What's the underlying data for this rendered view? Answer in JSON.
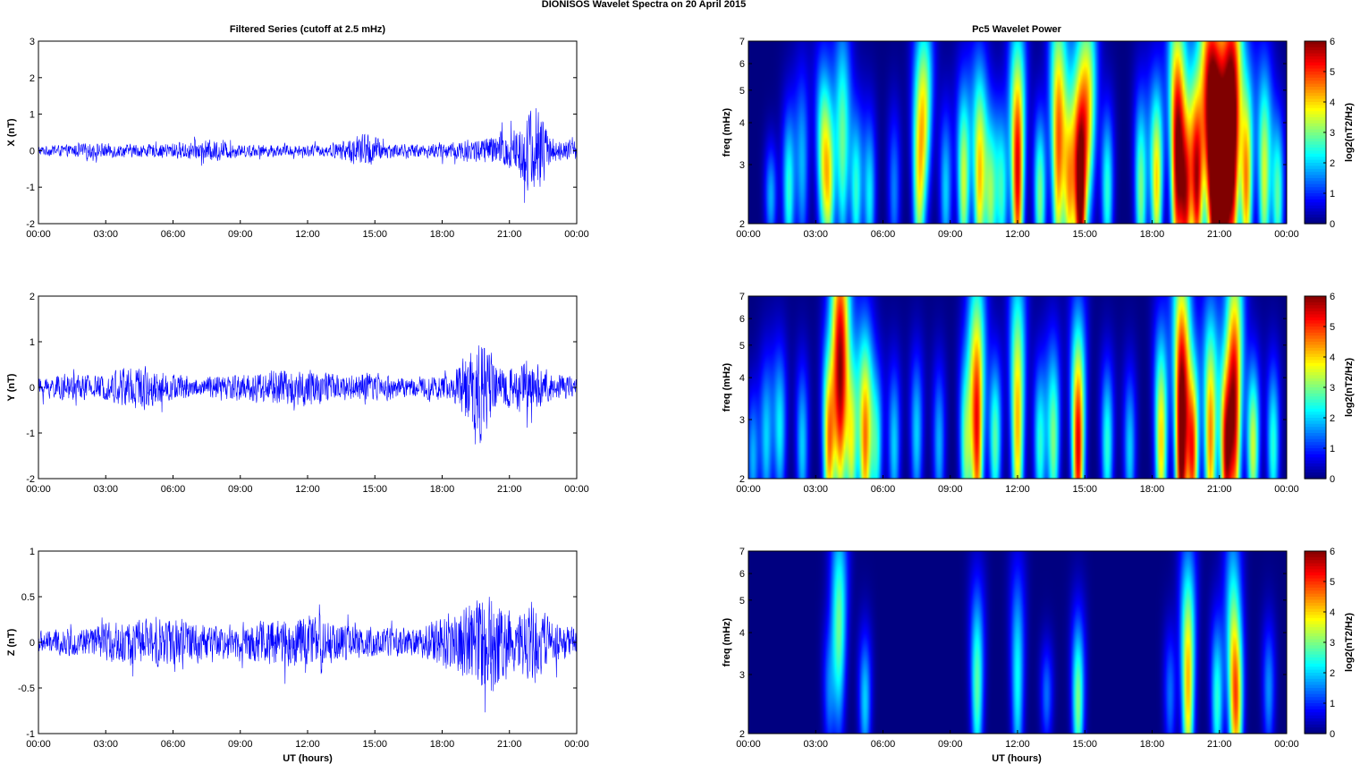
{
  "figure": {
    "title": "DIONISOS Wavelet Spectra on 20 April     2015",
    "left_title": "Filtered Series (cutoff at 2.5 mHz)",
    "right_title": "Pc5 Wavelet Power",
    "xlabel": "UT (hours)",
    "colormap": "jet"
  },
  "chart_data": [
    {
      "type": "line",
      "component": "X",
      "ylabel": "X (nT)",
      "xlim": [
        0,
        24
      ],
      "ylim": [
        -2,
        3
      ],
      "yticks": [
        "3",
        "2",
        "1",
        "0",
        "-1",
        "-2"
      ],
      "ytick_values": [
        3,
        2,
        1,
        0,
        -1,
        -2
      ],
      "xticks": [
        "00:00",
        "03:00",
        "06:00",
        "09:00",
        "12:00",
        "15:00",
        "18:00",
        "21:00",
        "00:00"
      ],
      "line_color": "#0000ff",
      "envelope": [
        {
          "t": 0,
          "amp": 0.15
        },
        {
          "t": 1.5,
          "amp": 0.2
        },
        {
          "t": 2.5,
          "amp": 0.25
        },
        {
          "t": 3.5,
          "amp": 0.22
        },
        {
          "t": 5,
          "amp": 0.2
        },
        {
          "t": 7.8,
          "amp": 0.35
        },
        {
          "t": 9,
          "amp": 0.2
        },
        {
          "t": 12,
          "amp": 0.18
        },
        {
          "t": 13,
          "amp": 0.2
        },
        {
          "t": 14.7,
          "amp": 0.6
        },
        {
          "t": 15.5,
          "amp": 0.25
        },
        {
          "t": 17,
          "amp": 0.2
        },
        {
          "t": 18.5,
          "amp": 0.3
        },
        {
          "t": 20,
          "amp": 0.45
        },
        {
          "t": 21.3,
          "amp": 0.8
        },
        {
          "t": 22.2,
          "amp": 1.6
        },
        {
          "t": 23,
          "amp": 0.35
        },
        {
          "t": 24,
          "amp": 0.3
        }
      ]
    },
    {
      "type": "line",
      "component": "Y",
      "ylabel": "Y (nT)",
      "xlim": [
        0,
        24
      ],
      "ylim": [
        -2,
        2
      ],
      "yticks": [
        "2",
        "1",
        "0",
        "-1",
        "-2"
      ],
      "ytick_values": [
        2,
        1,
        0,
        -1,
        -2
      ],
      "xticks": [
        "00:00",
        "03:00",
        "06:00",
        "09:00",
        "12:00",
        "15:00",
        "18:00",
        "21:00",
        "00:00"
      ],
      "line_color": "#0000ff",
      "envelope": [
        {
          "t": 0,
          "amp": 0.25
        },
        {
          "t": 1.5,
          "amp": 0.35
        },
        {
          "t": 3,
          "amp": 0.3
        },
        {
          "t": 4.1,
          "amp": 0.7
        },
        {
          "t": 5.2,
          "amp": 0.45
        },
        {
          "t": 7,
          "amp": 0.25
        },
        {
          "t": 10.3,
          "amp": 0.45
        },
        {
          "t": 12,
          "amp": 0.5
        },
        {
          "t": 13.5,
          "amp": 0.3
        },
        {
          "t": 14.7,
          "amp": 0.4
        },
        {
          "t": 16.5,
          "amp": 0.25
        },
        {
          "t": 18.5,
          "amp": 0.35
        },
        {
          "t": 19.7,
          "amp": 1.5
        },
        {
          "t": 20.5,
          "amp": 0.45
        },
        {
          "t": 21.8,
          "amp": 0.7
        },
        {
          "t": 23,
          "amp": 0.35
        },
        {
          "t": 24,
          "amp": 0.3
        }
      ]
    },
    {
      "type": "line",
      "component": "Z",
      "ylabel": "Z (nT)",
      "xlim": [
        0,
        24
      ],
      "ylim": [
        -1,
        1
      ],
      "yticks": [
        "1",
        "0.5",
        "0",
        "-0.5",
        "-1"
      ],
      "ytick_values": [
        1,
        0.5,
        0,
        -0.5,
        -1
      ],
      "xticks": [
        "00:00",
        "03:00",
        "06:00",
        "09:00",
        "12:00",
        "15:00",
        "18:00",
        "21:00",
        "00:00"
      ],
      "line_color": "#0000ff",
      "envelope": [
        {
          "t": 0,
          "amp": 0.15
        },
        {
          "t": 2,
          "amp": 0.18
        },
        {
          "t": 4,
          "amp": 0.3
        },
        {
          "t": 6.5,
          "amp": 0.3
        },
        {
          "t": 8,
          "amp": 0.2
        },
        {
          "t": 10.3,
          "amp": 0.3
        },
        {
          "t": 12.3,
          "amp": 0.35
        },
        {
          "t": 14,
          "amp": 0.2
        },
        {
          "t": 17,
          "amp": 0.18
        },
        {
          "t": 19.5,
          "amp": 0.55
        },
        {
          "t": 20,
          "amp": 0.8
        },
        {
          "t": 21.2,
          "amp": 0.35
        },
        {
          "t": 22,
          "amp": 0.55
        },
        {
          "t": 23,
          "amp": 0.25
        },
        {
          "t": 24,
          "amp": 0.2
        }
      ]
    },
    {
      "type": "heatmap",
      "component": "X",
      "ylabel": "freq (mHz)",
      "xlim": [
        0,
        24
      ],
      "ylim": [
        2,
        7
      ],
      "yscale": "log",
      "yticks": [
        "7",
        "6",
        "5",
        "4",
        "3",
        "2"
      ],
      "ytick_values": [
        7,
        6,
        5,
        4,
        3,
        2
      ],
      "xticks": [
        "00:00",
        "03:00",
        "06:00",
        "09:00",
        "12:00",
        "15:00",
        "18:00",
        "21:00",
        "00:00"
      ],
      "clim": [
        0,
        6
      ],
      "colorbar_label": "log2(nT2/Hz)",
      "colorbar_ticks": [
        "6",
        "5",
        "4",
        "3",
        "2",
        "1",
        "0"
      ],
      "blobs": [
        {
          "t": 1.0,
          "f": 2.4,
          "p": 1.8,
          "ft": 0.3
        },
        {
          "t": 1.8,
          "f": 2.5,
          "p": 2.5,
          "ft": 0.5
        },
        {
          "t": 2.4,
          "f": 3.0,
          "p": 1.8,
          "ft": 0.6
        },
        {
          "t": 3.3,
          "f": 3.3,
          "p": 2.5,
          "ft": 0.6
        },
        {
          "t": 3.6,
          "f": 2.6,
          "p": 3.2,
          "ft": 0.5
        },
        {
          "t": 4.2,
          "f": 3.5,
          "p": 2.8,
          "ft": 0.8
        },
        {
          "t": 4.8,
          "f": 2.5,
          "p": 2.5,
          "ft": 0.5
        },
        {
          "t": 5.4,
          "f": 2.4,
          "p": 2.2,
          "ft": 0.5
        },
        {
          "t": 6.5,
          "f": 2.5,
          "p": 1.5,
          "ft": 0.5
        },
        {
          "t": 7.6,
          "f": 2.8,
          "p": 3.5,
          "ft": 0.7
        },
        {
          "t": 7.9,
          "f": 4.6,
          "p": 2.5,
          "ft": 0.6
        },
        {
          "t": 8.8,
          "f": 2.5,
          "p": 2.0,
          "ft": 0.5
        },
        {
          "t": 9.6,
          "f": 2.7,
          "p": 3.5,
          "ft": 0.6
        },
        {
          "t": 10.3,
          "f": 2.8,
          "p": 4.0,
          "ft": 0.7
        },
        {
          "t": 10.8,
          "f": 2.4,
          "p": 3.0,
          "ft": 0.5
        },
        {
          "t": 11.3,
          "f": 2.5,
          "p": 2.5,
          "ft": 0.5
        },
        {
          "t": 12.0,
          "f": 2.9,
          "p": 5.5,
          "ft": 0.9
        },
        {
          "t": 13.0,
          "f": 2.4,
          "p": 3.0,
          "ft": 0.5
        },
        {
          "t": 13.8,
          "f": 3.5,
          "p": 4.5,
          "ft": 1.0
        },
        {
          "t": 14.3,
          "f": 2.6,
          "p": 4.0,
          "ft": 0.6
        },
        {
          "t": 14.8,
          "f": 2.5,
          "p": 6.5,
          "ft": 0.8
        },
        {
          "t": 15.2,
          "f": 4.5,
          "p": 3.0,
          "ft": 0.7
        },
        {
          "t": 16.0,
          "f": 2.5,
          "p": 2.5,
          "ft": 0.5
        },
        {
          "t": 17.5,
          "f": 2.5,
          "p": 3.0,
          "ft": 0.6
        },
        {
          "t": 18.2,
          "f": 2.7,
          "p": 4.0,
          "ft": 0.6
        },
        {
          "t": 19.1,
          "f": 3.3,
          "p": 5.5,
          "ft": 1.0
        },
        {
          "t": 19.5,
          "f": 2.4,
          "p": 5.0,
          "ft": 0.6
        },
        {
          "t": 20.0,
          "f": 2.7,
          "p": 5.5,
          "ft": 0.7
        },
        {
          "t": 20.5,
          "f": 4.5,
          "p": 3.5,
          "ft": 1.0
        },
        {
          "t": 20.8,
          "f": 2.8,
          "p": 6.5,
          "ft": 0.9
        },
        {
          "t": 21.2,
          "f": 2.6,
          "p": 6.5,
          "ft": 0.8
        },
        {
          "t": 21.6,
          "f": 3.7,
          "p": 6.0,
          "ft": 1.1
        },
        {
          "t": 22.2,
          "f": 2.7,
          "p": 4.5,
          "ft": 0.7
        },
        {
          "t": 23.0,
          "f": 2.8,
          "p": 3.5,
          "ft": 0.7
        },
        {
          "t": 23.6,
          "f": 2.4,
          "p": 2.8,
          "ft": 0.5
        }
      ]
    },
    {
      "type": "heatmap",
      "component": "Y",
      "ylabel": "freq (mHz)",
      "xlim": [
        0,
        24
      ],
      "ylim": [
        2,
        7
      ],
      "yscale": "log",
      "yticks": [
        "7",
        "6",
        "5",
        "4",
        "3",
        "2"
      ],
      "ytick_values": [
        7,
        6,
        5,
        4,
        3,
        2
      ],
      "xticks": [
        "00:00",
        "03:00",
        "06:00",
        "09:00",
        "12:00",
        "15:00",
        "18:00",
        "21:00",
        "00:00"
      ],
      "clim": [
        0,
        6
      ],
      "colorbar_label": "log2(nT2/Hz)",
      "colorbar_ticks": [
        "6",
        "5",
        "4",
        "3",
        "2",
        "1",
        "0"
      ],
      "blobs": [
        {
          "t": 0.2,
          "f": 2.3,
          "p": 1.8,
          "ft": 0.4
        },
        {
          "t": 0.8,
          "f": 2.6,
          "p": 2.0,
          "ft": 0.5
        },
        {
          "t": 1.4,
          "f": 2.8,
          "p": 2.2,
          "ft": 0.5
        },
        {
          "t": 2.4,
          "f": 2.5,
          "p": 2.0,
          "ft": 0.5
        },
        {
          "t": 3.6,
          "f": 2.6,
          "p": 4.5,
          "ft": 0.6
        },
        {
          "t": 4.1,
          "f": 4.3,
          "p": 5.5,
          "ft": 1.1
        },
        {
          "t": 4.6,
          "f": 2.6,
          "p": 3.5,
          "ft": 0.6
        },
        {
          "t": 5.2,
          "f": 2.6,
          "p": 4.5,
          "ft": 0.7
        },
        {
          "t": 5.7,
          "f": 2.5,
          "p": 2.5,
          "ft": 0.5
        },
        {
          "t": 6.5,
          "f": 2.5,
          "p": 2.0,
          "ft": 0.5
        },
        {
          "t": 7.5,
          "f": 2.7,
          "p": 2.0,
          "ft": 0.5
        },
        {
          "t": 8.5,
          "f": 2.5,
          "p": 1.8,
          "ft": 0.5
        },
        {
          "t": 9.7,
          "f": 2.5,
          "p": 3.0,
          "ft": 0.6
        },
        {
          "t": 10.2,
          "f": 2.9,
          "p": 5.2,
          "ft": 1.0
        },
        {
          "t": 11.0,
          "f": 2.6,
          "p": 2.8,
          "ft": 0.5
        },
        {
          "t": 12.0,
          "f": 3.0,
          "p": 4.2,
          "ft": 1.0
        },
        {
          "t": 13.0,
          "f": 2.5,
          "p": 2.5,
          "ft": 0.5
        },
        {
          "t": 13.6,
          "f": 2.6,
          "p": 3.0,
          "ft": 0.6
        },
        {
          "t": 14.7,
          "f": 2.5,
          "p": 5.5,
          "ft": 0.8
        },
        {
          "t": 16.0,
          "f": 2.5,
          "p": 2.5,
          "ft": 0.5
        },
        {
          "t": 17.0,
          "f": 2.4,
          "p": 2.0,
          "ft": 0.5
        },
        {
          "t": 18.4,
          "f": 2.6,
          "p": 4.0,
          "ft": 0.7
        },
        {
          "t": 19.3,
          "f": 2.8,
          "p": 6.5,
          "ft": 1.2
        },
        {
          "t": 19.8,
          "f": 2.4,
          "p": 5.0,
          "ft": 0.6
        },
        {
          "t": 20.6,
          "f": 2.7,
          "p": 4.5,
          "ft": 0.8
        },
        {
          "t": 21.3,
          "f": 2.4,
          "p": 5.5,
          "ft": 0.6
        },
        {
          "t": 21.7,
          "f": 3.4,
          "p": 5.0,
          "ft": 1.1
        },
        {
          "t": 22.5,
          "f": 2.5,
          "p": 3.5,
          "ft": 0.5
        },
        {
          "t": 23.4,
          "f": 2.5,
          "p": 2.5,
          "ft": 0.5
        }
      ]
    },
    {
      "type": "heatmap",
      "component": "Z",
      "ylabel": "freq (mHz)",
      "xlim": [
        0,
        24
      ],
      "ylim": [
        2,
        7
      ],
      "yscale": "log",
      "yticks": [
        "7",
        "6",
        "5",
        "4",
        "3",
        "2"
      ],
      "ytick_values": [
        7,
        6,
        5,
        4,
        3,
        2
      ],
      "xticks": [
        "00:00",
        "03:00",
        "06:00",
        "09:00",
        "12:00",
        "15:00",
        "18:00",
        "21:00",
        "00:00"
      ],
      "clim": [
        0,
        6
      ],
      "colorbar_label": "log2(nT2/Hz)",
      "colorbar_ticks": [
        "6",
        "5",
        "4",
        "3",
        "2",
        "1",
        "0"
      ],
      "blobs": [
        {
          "t": 3.6,
          "f": 2.7,
          "p": 1.4,
          "ft": 0.4
        },
        {
          "t": 4.05,
          "f": 4.3,
          "p": 2.8,
          "ft": 0.7
        },
        {
          "t": 5.2,
          "f": 2.5,
          "p": 2.0,
          "ft": 0.4
        },
        {
          "t": 10.2,
          "f": 2.8,
          "p": 2.8,
          "ft": 0.6
        },
        {
          "t": 12.0,
          "f": 2.9,
          "p": 2.3,
          "ft": 0.7
        },
        {
          "t": 13.3,
          "f": 2.6,
          "p": 1.4,
          "ft": 0.3
        },
        {
          "t": 14.7,
          "f": 2.5,
          "p": 3.0,
          "ft": 0.5
        },
        {
          "t": 18.8,
          "f": 2.6,
          "p": 1.4,
          "ft": 0.4
        },
        {
          "t": 19.6,
          "f": 2.9,
          "p": 4.2,
          "ft": 0.8
        },
        {
          "t": 20.9,
          "f": 2.5,
          "p": 2.5,
          "ft": 0.5
        },
        {
          "t": 21.6,
          "f": 3.5,
          "p": 2.6,
          "ft": 0.9
        },
        {
          "t": 21.8,
          "f": 2.4,
          "p": 3.3,
          "ft": 0.5
        },
        {
          "t": 23.2,
          "f": 2.7,
          "p": 1.6,
          "ft": 0.4
        }
      ]
    }
  ]
}
